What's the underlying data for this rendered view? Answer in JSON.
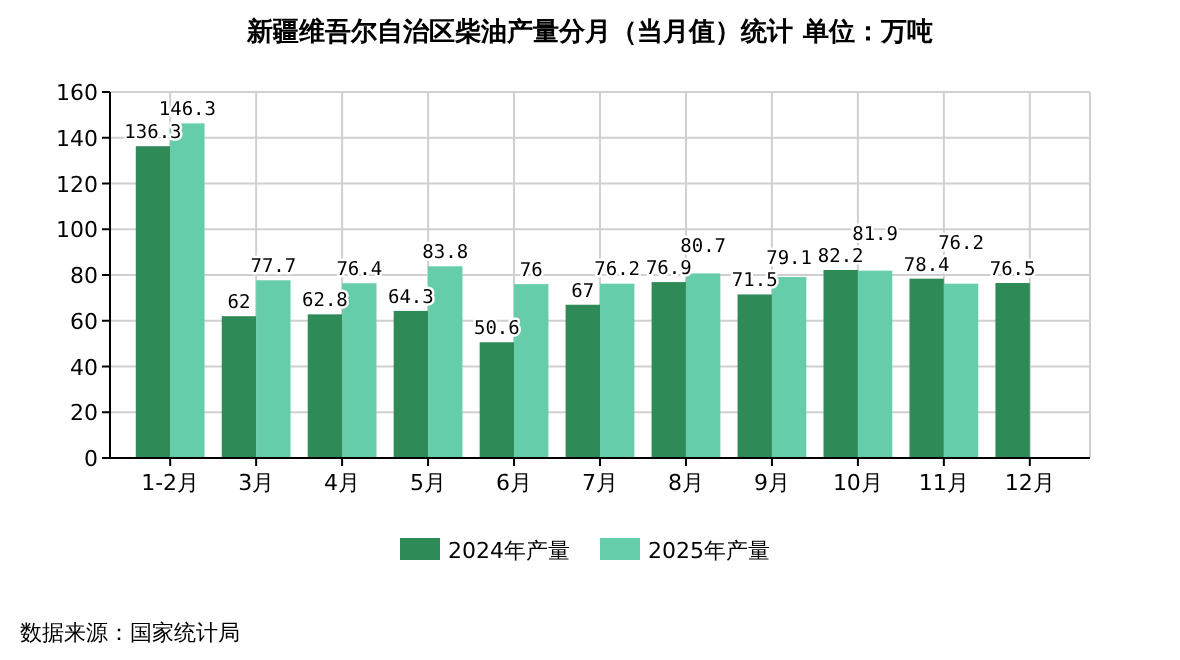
{
  "chart_data": {
    "type": "bar",
    "title": "新疆维吾尔自治区柴油产量分月（当月值）统计  单位：万吨",
    "categories": [
      "1-2月",
      "3月",
      "4月",
      "5月",
      "6月",
      "7月",
      "8月",
      "9月",
      "10月",
      "11月",
      "12月"
    ],
    "series": [
      {
        "name": "2024年产量",
        "color": "#2e8b57",
        "values": [
          136.3,
          62,
          62.8,
          64.3,
          50.6,
          67,
          76.9,
          71.5,
          82.2,
          78.4,
          76.5
        ]
      },
      {
        "name": "2025年产量",
        "color": "#66cdaa",
        "values": [
          146.3,
          77.7,
          76.4,
          83.8,
          76,
          76.2,
          80.7,
          79.1,
          81.9,
          76.2,
          null
        ]
      }
    ],
    "ylim": [
      0,
      160
    ],
    "yticks": [
      0,
      20,
      40,
      60,
      80,
      100,
      120,
      140,
      160
    ],
    "grid": true,
    "legend": "bottom",
    "data_labels": true,
    "annotations": [
      "数据来源：国家统计局"
    ]
  }
}
